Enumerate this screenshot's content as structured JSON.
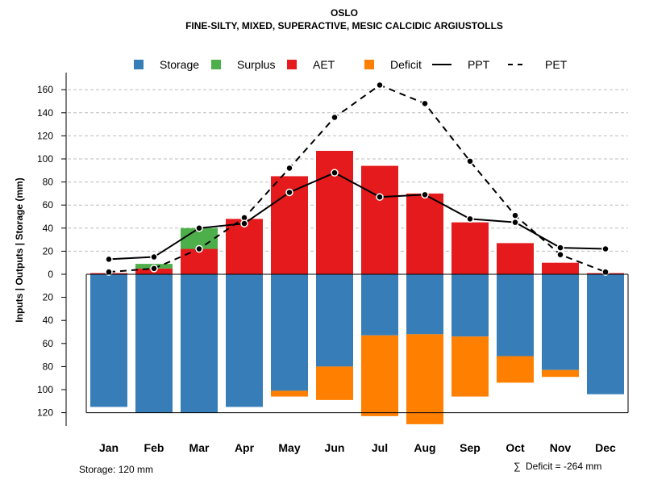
{
  "chart_data": {
    "type": "bar",
    "title": "OSLO",
    "subtitle": "FINE-SILTY, MIXED, SUPERACTIVE, MESIC CALCIDIC ARGIUSTOLLS",
    "ylabel": "Inputs | Outputs | Storage    (mm)",
    "ylim": [
      -130,
      170
    ],
    "yticks_pos": [
      160,
      140,
      120,
      100,
      80,
      60,
      40,
      20,
      0
    ],
    "yticks_neg": [
      20,
      40,
      60,
      80,
      100,
      120
    ],
    "grid": true,
    "legend_position": "top",
    "categories": [
      "Jan",
      "Feb",
      "Mar",
      "Apr",
      "May",
      "Jun",
      "Jul",
      "Aug",
      "Sep",
      "Oct",
      "Nov",
      "Dec"
    ],
    "legend": [
      {
        "name": "Storage",
        "color": "#377EB8",
        "kind": "box"
      },
      {
        "name": "Surplus",
        "color": "#4DAF4A",
        "kind": "box"
      },
      {
        "name": "AET",
        "color": "#E41A1C",
        "kind": "box"
      },
      {
        "name": "Deficit",
        "color": "#FF7F00",
        "kind": "box"
      },
      {
        "name": "PPT",
        "color": "#000000",
        "kind": "solid"
      },
      {
        "name": "PET",
        "color": "#000000",
        "kind": "dashed"
      }
    ],
    "series": [
      {
        "name": "AET",
        "values": [
          1,
          5,
          22,
          48,
          85,
          107,
          94,
          70,
          45,
          27,
          10,
          1
        ]
      },
      {
        "name": "Surplus",
        "values": [
          0,
          4,
          18,
          0,
          0,
          0,
          0,
          0,
          0,
          0,
          0,
          0
        ]
      },
      {
        "name": "Storage",
        "values": [
          115,
          120,
          120,
          115,
          101,
          80,
          53,
          52,
          54,
          71,
          83,
          104
        ]
      },
      {
        "name": "Deficit",
        "values": [
          0,
          0,
          0,
          0,
          5,
          29,
          70,
          78,
          52,
          23,
          6,
          0
        ]
      },
      {
        "name": "PPT",
        "values": [
          13,
          15,
          40,
          44,
          71,
          88,
          67,
          69,
          48,
          45,
          23,
          22
        ]
      },
      {
        "name": "PET",
        "values": [
          2,
          5,
          22,
          49,
          92,
          136,
          164,
          148,
          98,
          51,
          17,
          2
        ]
      }
    ],
    "footer_left": "Storage: 120 mm",
    "footer_right_symbol": "∑",
    "footer_right": "Deficit = -264 mm"
  }
}
